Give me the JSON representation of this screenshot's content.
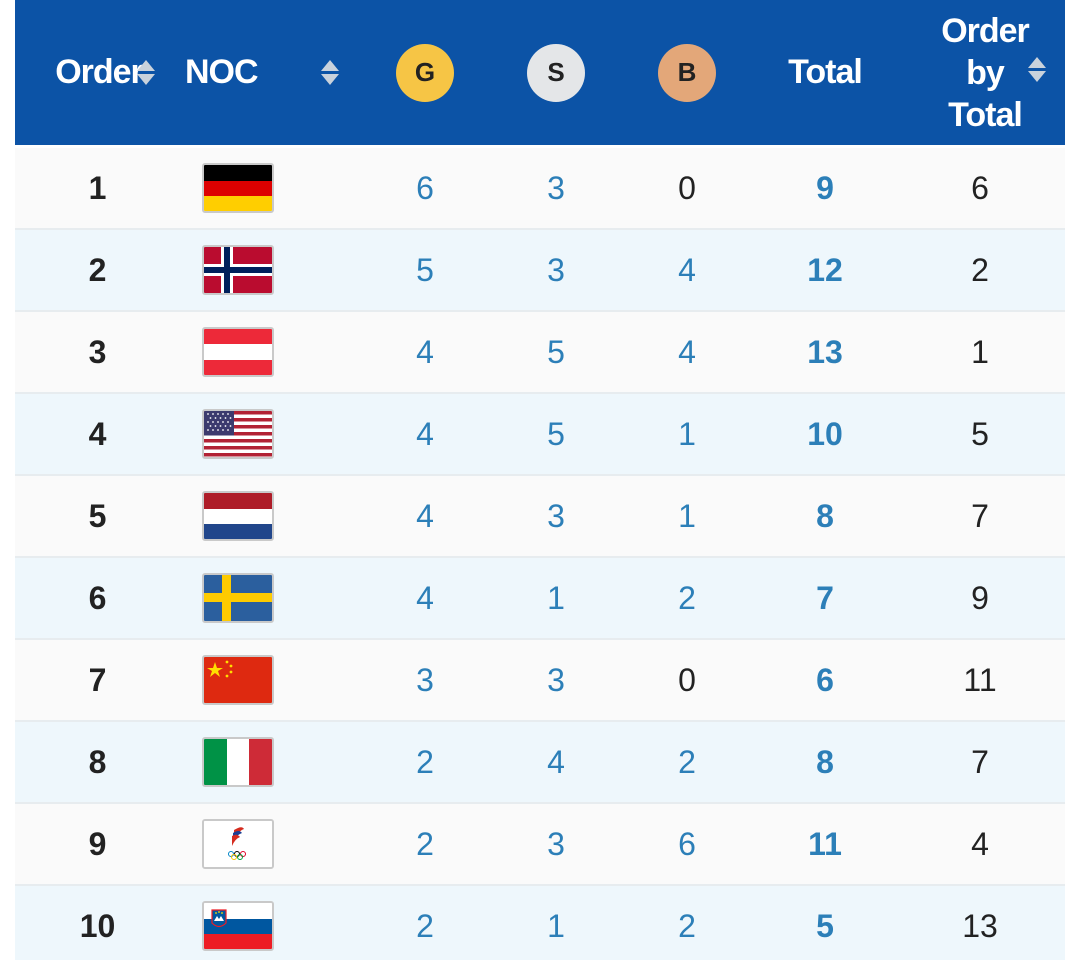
{
  "header": {
    "order_label": "Order",
    "noc_label": "NOC",
    "gold_label": "G",
    "silver_label": "S",
    "bronze_label": "B",
    "total_label": "Total",
    "order_by_total_lines": [
      "Order",
      "by",
      "Total"
    ]
  },
  "colors": {
    "header_bg": "#0c53a6",
    "gold": "#f6c545",
    "silver": "#e4e6e8",
    "bronze": "#e3a779",
    "row_alt": "#eef7fc",
    "row": "#fafafa",
    "link_blue": "#2c7fb8"
  },
  "rows": [
    {
      "order": "1",
      "noc_flag": "germany-flag",
      "gold": "6",
      "silver": "3",
      "bronze": "0",
      "total": "9",
      "order_by_total": "6"
    },
    {
      "order": "2",
      "noc_flag": "norway-flag",
      "gold": "5",
      "silver": "3",
      "bronze": "4",
      "total": "12",
      "order_by_total": "2"
    },
    {
      "order": "3",
      "noc_flag": "austria-flag",
      "gold": "4",
      "silver": "5",
      "bronze": "4",
      "total": "13",
      "order_by_total": "1"
    },
    {
      "order": "4",
      "noc_flag": "usa-flag",
      "gold": "4",
      "silver": "5",
      "bronze": "1",
      "total": "10",
      "order_by_total": "5"
    },
    {
      "order": "5",
      "noc_flag": "netherlands-flag",
      "gold": "4",
      "silver": "3",
      "bronze": "1",
      "total": "8",
      "order_by_total": "7"
    },
    {
      "order": "6",
      "noc_flag": "sweden-flag",
      "gold": "4",
      "silver": "1",
      "bronze": "2",
      "total": "7",
      "order_by_total": "9"
    },
    {
      "order": "7",
      "noc_flag": "china-flag",
      "gold": "3",
      "silver": "3",
      "bronze": "0",
      "total": "6",
      "order_by_total": "11"
    },
    {
      "order": "8",
      "noc_flag": "italy-flag",
      "gold": "2",
      "silver": "4",
      "bronze": "2",
      "total": "8",
      "order_by_total": "7"
    },
    {
      "order": "9",
      "noc_flag": "roc-emblem",
      "gold": "2",
      "silver": "3",
      "bronze": "6",
      "total": "11",
      "order_by_total": "4"
    },
    {
      "order": "10",
      "noc_flag": "slovenia-flag",
      "gold": "2",
      "silver": "1",
      "bronze": "2",
      "total": "5",
      "order_by_total": "13"
    }
  ]
}
